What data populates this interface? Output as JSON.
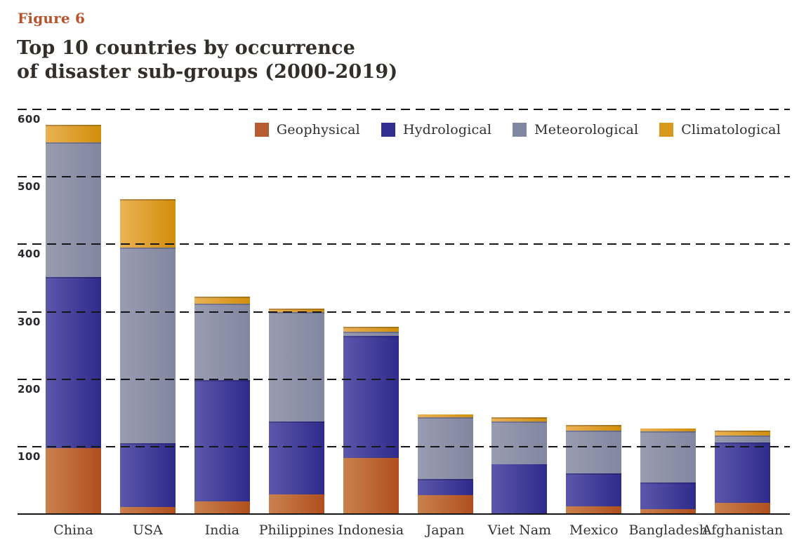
{
  "figure_label": "Figure 6",
  "title_line1": "Top 10 countries by occurrence",
  "title_line2": "of disaster sub-groups (2000-2019)",
  "chart_data": {
    "type": "bar",
    "stacked": true,
    "title": "Top 10 countries by occurrence of disaster sub-groups (2000-2019)",
    "categories": [
      "China",
      "USA",
      "India",
      "Philippines",
      "Indonesia",
      "Japan",
      "Viet Nam",
      "Mexico",
      "Bangladesh",
      "Afghanistan"
    ],
    "series": [
      {
        "name": "Geophysical",
        "legend_color": "#b65c33",
        "color_light": "#c9814e",
        "color_dark": "#b04f1d",
        "values": [
          98,
          10,
          19,
          29,
          83,
          28,
          0,
          11,
          7,
          17
        ]
      },
      {
        "name": "Hydrological",
        "legend_color": "#332f90",
        "color_light": "#5b58ab",
        "color_dark": "#2e2b8b",
        "values": [
          254,
          95,
          180,
          108,
          181,
          24,
          74,
          49,
          40,
          89
        ]
      },
      {
        "name": "Meteorological",
        "legend_color": "#7f87a2",
        "color_light": "#989cb0",
        "color_dark": "#8187a0",
        "values": [
          199,
          290,
          113,
          162,
          6,
          92,
          63,
          64,
          76,
          10
        ]
      },
      {
        "name": "Climatological",
        "legend_color": "#d9991f",
        "color_light": "#eab254",
        "color_dark": "#d18e0a",
        "values": [
          26,
          72,
          10,
          6,
          8,
          4,
          7,
          8,
          4,
          8
        ]
      }
    ],
    "y_ticks": [
      100,
      200,
      300,
      400,
      500,
      600
    ],
    "ylim": [
      0,
      600
    ],
    "xlabel": "",
    "ylabel": "",
    "grid": "dashed-horizontal-over-bars",
    "legend_position": "top-right-inside"
  }
}
